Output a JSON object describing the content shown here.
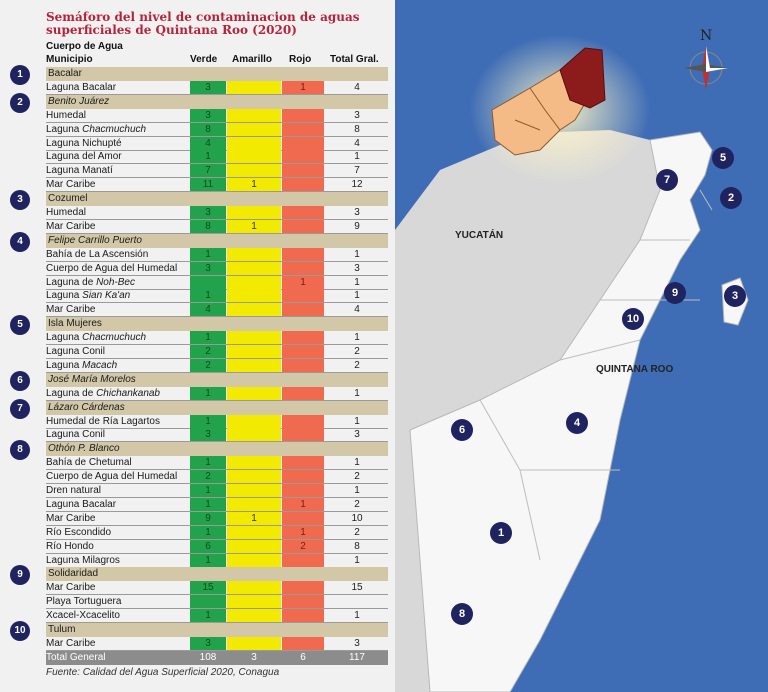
{
  "title_line1": "Semáforo del nivel de contaminacion de aguas",
  "title_line2": "superficiales de Quintana Roo (2020)",
  "header": {
    "cuerpo": "Cuerpo de Agua",
    "municipio": "Municipio",
    "verde": "Verde",
    "amarillo": "Amarillo",
    "rojo": "Rojo",
    "total": "Total Gral."
  },
  "municipalities": [
    {
      "num": "1",
      "name": "Bacalar",
      "italic": false,
      "rows": [
        {
          "name": "Laguna Bacalar",
          "v": "3",
          "a": "",
          "r": "1",
          "t": "4"
        }
      ]
    },
    {
      "num": "2",
      "name": "Benito Juárez",
      "italic": true,
      "rows": [
        {
          "name": "Humedal",
          "v": "3",
          "a": "",
          "r": "",
          "t": "3"
        },
        {
          "name": "Laguna ",
          "name_it": "Chacmuchuch",
          "v": "8",
          "a": "",
          "r": "",
          "t": "8"
        },
        {
          "name": "Laguna Nichupté",
          "v": "4",
          "a": "",
          "r": "",
          "t": "4"
        },
        {
          "name": "Laguna del Amor",
          "v": "1",
          "a": "",
          "r": "",
          "t": "1"
        },
        {
          "name": "Laguna Manatí",
          "v": "7",
          "a": "",
          "r": "",
          "t": "7"
        },
        {
          "name": "Mar Caribe",
          "v": "11",
          "a": "1",
          "r": "",
          "t": "12"
        }
      ]
    },
    {
      "num": "3",
      "name": "Cozumel",
      "italic": false,
      "rows": [
        {
          "name": "Humedal",
          "v": "3",
          "a": "",
          "r": "",
          "t": "3"
        },
        {
          "name": "Mar Caribe",
          "v": "8",
          "a": "1",
          "r": "",
          "t": "9"
        }
      ]
    },
    {
      "num": "4",
      "name": "Felipe Carrillo Puerto",
      "italic": true,
      "rows": [
        {
          "name": "Bahía de La Ascensión",
          "v": "1",
          "a": "",
          "r": "",
          "t": "1"
        },
        {
          "name": "Cuerpo de Agua del Humedal",
          "v": "3",
          "a": "",
          "r": "",
          "t": "3"
        },
        {
          "name": "Laguna de ",
          "name_it": "Noh-Bec",
          "v": "",
          "a": "",
          "r": "1",
          "t": "1"
        },
        {
          "name": "Laguna ",
          "name_it": "Sian Ka'an",
          "v": "1",
          "a": "",
          "r": "",
          "t": "1"
        },
        {
          "name": "Mar Caribe",
          "v": "4",
          "a": "",
          "r": "",
          "t": "4"
        }
      ]
    },
    {
      "num": "5",
      "name": "Isla Mujeres",
      "italic": false,
      "rows": [
        {
          "name": "Laguna ",
          "name_it": "Chacmuchuch",
          "v": "1",
          "a": "",
          "r": "",
          "t": "1"
        },
        {
          "name": "Laguna Conil",
          "v": "2",
          "a": "",
          "r": "",
          "t": "2"
        },
        {
          "name": "Laguna ",
          "name_it": "Macach",
          "v": "2",
          "a": "",
          "r": "",
          "t": "2"
        }
      ]
    },
    {
      "num": "6",
      "name": "José María Morelos",
      "italic": true,
      "rows": [
        {
          "name": "Laguna de ",
          "name_it": "Chichankanab",
          "v": "1",
          "a": "",
          "r": "",
          "t": "1"
        }
      ]
    },
    {
      "num": "7",
      "name": "Lázaro Cárdenas",
      "italic": true,
      "rows": [
        {
          "name": "Humedal de Ría Lagartos",
          "v": "1",
          "a": "",
          "r": "",
          "t": "1"
        },
        {
          "name": "Laguna Conil",
          "v": "3",
          "a": "",
          "r": "",
          "t": "3"
        }
      ]
    },
    {
      "num": "8",
      "name": "Othón P. Blanco",
      "italic": true,
      "rows": [
        {
          "name": "Bahía de Chetumal",
          "v": "1",
          "a": "",
          "r": "",
          "t": "1"
        },
        {
          "name": "Cuerpo de Agua del Humedal",
          "v": "2",
          "a": "",
          "r": "",
          "t": "2"
        },
        {
          "name": "Dren natural",
          "v": "1",
          "a": "",
          "r": "",
          "t": "1"
        },
        {
          "name": "Laguna Bacalar",
          "v": "1",
          "a": "",
          "r": "1",
          "t": "2"
        },
        {
          "name": "Mar Caribe",
          "v": "9",
          "a": "1",
          "r": "",
          "t": "10"
        },
        {
          "name": "Río Escondido",
          "v": "1",
          "a": "",
          "r": "1",
          "t": "2"
        },
        {
          "name": "Río Hondo",
          "v": "6",
          "a": "",
          "r": "2",
          "t": "8"
        },
        {
          "name": "Laguna Milagros",
          "v": "1",
          "a": "",
          "r": "",
          "t": "1"
        }
      ]
    },
    {
      "num": "9",
      "name": "Solidaridad",
      "italic": false,
      "rows": [
        {
          "name": "Mar Caribe",
          "v": "15",
          "a": "",
          "r": "",
          "t": "15"
        },
        {
          "name": "Playa Tortuguera",
          "v": "",
          "a": "",
          "r": "",
          "t": ""
        },
        {
          "name": "Xcacel-Xcacelito",
          "v": "1",
          "a": "",
          "r": "",
          "t": "1"
        }
      ]
    },
    {
      "num": "10",
      "name": "Tulum",
      "italic": false,
      "rows": [
        {
          "name": "Mar Caribe",
          "v": "3",
          "a": "",
          "r": "",
          "t": "3"
        }
      ]
    }
  ],
  "total": {
    "name": "Total General",
    "v": "108",
    "a": "3",
    "r": "6",
    "t": "117"
  },
  "source": "Fuente: Calidad del Agua Superficial 2020, Conagua",
  "map": {
    "yucatan": "YUCATÁN",
    "quintana_roo": "QUINTANA ROO",
    "compass_n": "N",
    "markers": [
      "5",
      "7",
      "2",
      "9",
      "3",
      "10",
      "4",
      "6",
      "1",
      "8"
    ]
  }
}
